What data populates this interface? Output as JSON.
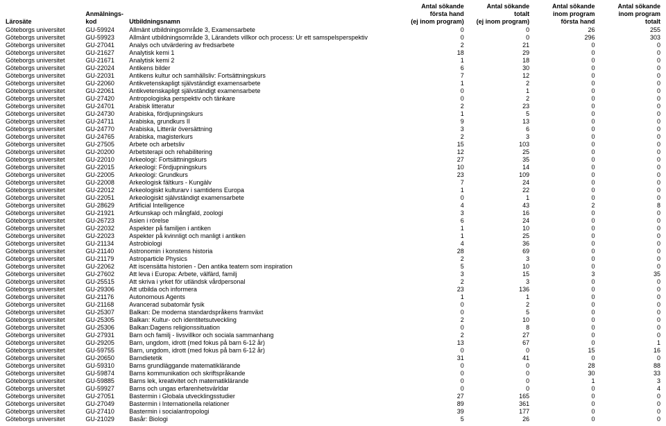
{
  "headers": {
    "larosate": "Lärosäte",
    "kod_l1": "Anmälnings-",
    "kod_l2": "kod",
    "namn": "Utbildningsnamn",
    "c1_l1": "Antal sökande",
    "c1_l2": "första hand",
    "c1_l3": "(ej inom program)",
    "c2_l1": "Antal sökande",
    "c2_l2": "totalt",
    "c2_l3": "(ej inom program)",
    "c3_l1": "Antal sökande",
    "c3_l2": "inom program",
    "c3_l3": "första hand",
    "c4_l1": "Antal sökande",
    "c4_l2": "inom program",
    "c4_l3": "totalt"
  },
  "rows": [
    {
      "larosate": "Göteborgs universitet",
      "kod": "GU-59924",
      "namn": "Allmänt utbildningsområde 3, Examensarbete",
      "c1": 0,
      "c2": 0,
      "c3": 26,
      "c4": 255
    },
    {
      "larosate": "Göteborgs universitet",
      "kod": "GU-59923",
      "namn": "Allmänt utbildningsområde 3, Lärandets villkor och process: Ur ett samspelsperspektiv",
      "c1": 0,
      "c2": 0,
      "c3": 296,
      "c4": 303
    },
    {
      "larosate": "Göteborgs universitet",
      "kod": "GU-27041",
      "namn": "Analys och utvärdering av fredsarbete",
      "c1": 2,
      "c2": 21,
      "c3": 0,
      "c4": 0
    },
    {
      "larosate": "Göteborgs universitet",
      "kod": "GU-21627",
      "namn": "Analytisk kemi 1",
      "c1": 18,
      "c2": 29,
      "c3": 0,
      "c4": 0
    },
    {
      "larosate": "Göteborgs universitet",
      "kod": "GU-21671",
      "namn": "Analytisk kemi 2",
      "c1": 1,
      "c2": 18,
      "c3": 0,
      "c4": 0
    },
    {
      "larosate": "Göteborgs universitet",
      "kod": "GU-22024",
      "namn": "Antikens bilder",
      "c1": 6,
      "c2": 30,
      "c3": 0,
      "c4": 0
    },
    {
      "larosate": "Göteborgs universitet",
      "kod": "GU-22031",
      "namn": "Antikens kultur och samhällsliv: Fortsättningskurs",
      "c1": 7,
      "c2": 12,
      "c3": 0,
      "c4": 0
    },
    {
      "larosate": "Göteborgs universitet",
      "kod": "GU-22060",
      "namn": "Antikvetenskapligt självständigt examensarbete",
      "c1": 1,
      "c2": 2,
      "c3": 0,
      "c4": 0
    },
    {
      "larosate": "Göteborgs universitet",
      "kod": "GU-22061",
      "namn": "Antikvetenskapligt självständigt examensarbete",
      "c1": 0,
      "c2": 1,
      "c3": 0,
      "c4": 0
    },
    {
      "larosate": "Göteborgs universitet",
      "kod": "GU-27420",
      "namn": "Antropologiska perspektiv och tänkare",
      "c1": 0,
      "c2": 2,
      "c3": 0,
      "c4": 0
    },
    {
      "larosate": "Göteborgs universitet",
      "kod": "GU-24701",
      "namn": "Arabisk litteratur",
      "c1": 2,
      "c2": 23,
      "c3": 0,
      "c4": 0
    },
    {
      "larosate": "Göteborgs universitet",
      "kod": "GU-24730",
      "namn": "Arabiska, fördjupningskurs",
      "c1": 1,
      "c2": 5,
      "c3": 0,
      "c4": 0
    },
    {
      "larosate": "Göteborgs universitet",
      "kod": "GU-24711",
      "namn": "Arabiska, grundkurs II",
      "c1": 9,
      "c2": 13,
      "c3": 0,
      "c4": 0
    },
    {
      "larosate": "Göteborgs universitet",
      "kod": "GU-24770",
      "namn": "Arabiska, Litterär översättning",
      "c1": 3,
      "c2": 6,
      "c3": 0,
      "c4": 0
    },
    {
      "larosate": "Göteborgs universitet",
      "kod": "GU-24765",
      "namn": "Arabiska, magisterkurs",
      "c1": 2,
      "c2": 3,
      "c3": 0,
      "c4": 0
    },
    {
      "larosate": "Göteborgs universitet",
      "kod": "GU-27505",
      "namn": "Arbete och arbetsliv",
      "c1": 15,
      "c2": 103,
      "c3": 0,
      "c4": 0
    },
    {
      "larosate": "Göteborgs universitet",
      "kod": "GU-20200",
      "namn": "Arbetsterapi och rehabilitering",
      "c1": 12,
      "c2": 25,
      "c3": 0,
      "c4": 0
    },
    {
      "larosate": "Göteborgs universitet",
      "kod": "GU-22010",
      "namn": "Arkeologi: Fortsättningskurs",
      "c1": 27,
      "c2": 35,
      "c3": 0,
      "c4": 0
    },
    {
      "larosate": "Göteborgs universitet",
      "kod": "GU-22015",
      "namn": "Arkeologi: Fördjupningskurs",
      "c1": 10,
      "c2": 14,
      "c3": 0,
      "c4": 0
    },
    {
      "larosate": "Göteborgs universitet",
      "kod": "GU-22005",
      "namn": "Arkeologi: Grundkurs",
      "c1": 23,
      "c2": 109,
      "c3": 0,
      "c4": 0
    },
    {
      "larosate": "Göteborgs universitet",
      "kod": "GU-22008",
      "namn": "Arkeologisk fältkurs - Kungälv",
      "c1": 7,
      "c2": 24,
      "c3": 0,
      "c4": 0
    },
    {
      "larosate": "Göteborgs universitet",
      "kod": "GU-22012",
      "namn": "Arkeologiskt kulturarv i samtidens Europa",
      "c1": 1,
      "c2": 22,
      "c3": 0,
      "c4": 0
    },
    {
      "larosate": "Göteborgs universitet",
      "kod": "GU-22051",
      "namn": "Arkeologiskt självständigt examensarbete",
      "c1": 0,
      "c2": 1,
      "c3": 0,
      "c4": 0
    },
    {
      "larosate": "Göteborgs universitet",
      "kod": "GU-28629",
      "namn": "Artificial Intelligence",
      "c1": 4,
      "c2": 43,
      "c3": 2,
      "c4": 8
    },
    {
      "larosate": "Göteborgs universitet",
      "kod": "GU-21921",
      "namn": "Artkunskap och mångfald, zoologi",
      "c1": 3,
      "c2": 16,
      "c3": 0,
      "c4": 0
    },
    {
      "larosate": "Göteborgs universitet",
      "kod": "GU-26723",
      "namn": "Asien i rörelse",
      "c1": 6,
      "c2": 24,
      "c3": 0,
      "c4": 0
    },
    {
      "larosate": "Göteborgs universitet",
      "kod": "GU-22032",
      "namn": "Aspekter på familjen i antiken",
      "c1": 1,
      "c2": 10,
      "c3": 0,
      "c4": 0
    },
    {
      "larosate": "Göteborgs universitet",
      "kod": "GU-22023",
      "namn": "Aspekter på kvinnligt och manligt i antiken",
      "c1": 1,
      "c2": 25,
      "c3": 0,
      "c4": 0
    },
    {
      "larosate": "Göteborgs universitet",
      "kod": "GU-21134",
      "namn": "Astrobiologi",
      "c1": 4,
      "c2": 36,
      "c3": 0,
      "c4": 0
    },
    {
      "larosate": "Göteborgs universitet",
      "kod": "GU-21140",
      "namn": "Astronomin i konstens historia",
      "c1": 28,
      "c2": 69,
      "c3": 0,
      "c4": 0
    },
    {
      "larosate": "Göteborgs universitet",
      "kod": "GU-21179",
      "namn": "Astroparticle Physics",
      "c1": 2,
      "c2": 3,
      "c3": 0,
      "c4": 0
    },
    {
      "larosate": "Göteborgs universitet",
      "kod": "GU-22062",
      "namn": "Att iscensätta historien - Den antika teatern som inspiration",
      "c1": 5,
      "c2": 10,
      "c3": 0,
      "c4": 0
    },
    {
      "larosate": "Göteborgs universitet",
      "kod": "GU-27602",
      "namn": "Att leva i Europa: Arbete, välfärd, familj",
      "c1": 3,
      "c2": 15,
      "c3": 3,
      "c4": 35
    },
    {
      "larosate": "Göteborgs universitet",
      "kod": "GU-25515",
      "namn": "Att skriva i yrket för utländsk vårdpersonal",
      "c1": 2,
      "c2": 3,
      "c3": 0,
      "c4": 0
    },
    {
      "larosate": "Göteborgs universitet",
      "kod": "GU-29306",
      "namn": "Att utbilda och informera",
      "c1": 23,
      "c2": 136,
      "c3": 0,
      "c4": 0
    },
    {
      "larosate": "Göteborgs universitet",
      "kod": "GU-21176",
      "namn": "Autonomous Agents",
      "c1": 1,
      "c2": 1,
      "c3": 0,
      "c4": 0
    },
    {
      "larosate": "Göteborgs universitet",
      "kod": "GU-21168",
      "namn": "Avancerad subatomär fysik",
      "c1": 0,
      "c2": 2,
      "c3": 0,
      "c4": 0
    },
    {
      "larosate": "Göteborgs universitet",
      "kod": "GU-25307",
      "namn": "Balkan: De moderna standardspråkens framväxt",
      "c1": 0,
      "c2": 5,
      "c3": 0,
      "c4": 0
    },
    {
      "larosate": "Göteborgs universitet",
      "kod": "GU-25305",
      "namn": "Balkan: Kultur- och identitetsutveckling",
      "c1": 2,
      "c2": 10,
      "c3": 0,
      "c4": 0
    },
    {
      "larosate": "Göteborgs universitet",
      "kod": "GU-25306",
      "namn": "Balkan:Dagens religionssituation",
      "c1": 0,
      "c2": 8,
      "c3": 0,
      "c4": 0
    },
    {
      "larosate": "Göteborgs universitet",
      "kod": "GU-27931",
      "namn": "Barn och familj - livsvillkor och sociala sammanhang",
      "c1": 2,
      "c2": 27,
      "c3": 0,
      "c4": 0
    },
    {
      "larosate": "Göteborgs universitet",
      "kod": "GU-29205",
      "namn": "Barn, ungdom, idrott (med fokus på barn 6-12 år)",
      "c1": 13,
      "c2": 67,
      "c3": 0,
      "c4": 1
    },
    {
      "larosate": "Göteborgs universitet",
      "kod": "GU-59755",
      "namn": "Barn, ungdom, idrott (med fokus på barn 6-12 år)",
      "c1": 0,
      "c2": 0,
      "c3": 15,
      "c4": 16
    },
    {
      "larosate": "Göteborgs universitet",
      "kod": "GU-20650",
      "namn": "Barndietetik",
      "c1": 31,
      "c2": 41,
      "c3": 0,
      "c4": 0
    },
    {
      "larosate": "Göteborgs universitet",
      "kod": "GU-59310",
      "namn": "Barns grundläggande matematiklärande",
      "c1": 0,
      "c2": 0,
      "c3": 28,
      "c4": 88
    },
    {
      "larosate": "Göteborgs universitet",
      "kod": "GU-59874",
      "namn": "Barns kommunikation och skriftspråkande",
      "c1": 0,
      "c2": 0,
      "c3": 30,
      "c4": 33
    },
    {
      "larosate": "Göteborgs universitet",
      "kod": "GU-59885",
      "namn": "Barns lek, kreativitet och matematiklärande",
      "c1": 0,
      "c2": 0,
      "c3": 1,
      "c4": 3
    },
    {
      "larosate": "Göteborgs universitet",
      "kod": "GU-59927",
      "namn": "Barns och ungas erfarenhetsvärldar",
      "c1": 0,
      "c2": 0,
      "c3": 0,
      "c4": 4
    },
    {
      "larosate": "Göteborgs universitet",
      "kod": "GU-27051",
      "namn": "Bastermin i Globala utvecklingsstudier",
      "c1": 27,
      "c2": 165,
      "c3": 0,
      "c4": 0
    },
    {
      "larosate": "Göteborgs universitet",
      "kod": "GU-27049",
      "namn": "Bastermin i Internationella relationer",
      "c1": 89,
      "c2": 361,
      "c3": 0,
      "c4": 0
    },
    {
      "larosate": "Göteborgs universitet",
      "kod": "GU-27410",
      "namn": "Bastermin i socialantropologi",
      "c1": 39,
      "c2": 177,
      "c3": 0,
      "c4": 0
    },
    {
      "larosate": "Göteborgs universitet",
      "kod": "GU-21029",
      "namn": "Basår: Biologi",
      "c1": 5,
      "c2": 26,
      "c3": 0,
      "c4": 0
    }
  ]
}
